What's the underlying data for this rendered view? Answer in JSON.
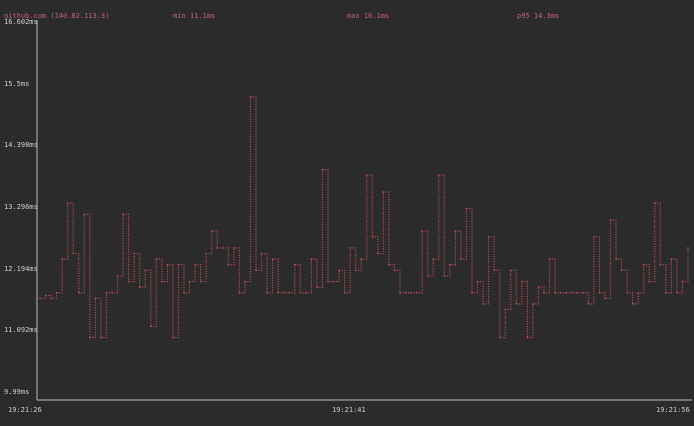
{
  "header": {
    "host": "github.com (140.82.113.3)",
    "min": "min 11.1ms",
    "max": "max 16.1ms",
    "p95": "p95 14.3ms"
  },
  "colors": {
    "series": "#c9505c",
    "axis": "#bdbdbd",
    "background": "#2b2b2b"
  },
  "chart_data": {
    "type": "line",
    "title": "",
    "xlabel": "",
    "ylabel": "",
    "ylim": [
      9.99,
      16.602
    ],
    "y_ticks": [
      "16.602ms",
      "15.5ms",
      "14.398ms",
      "13.296ms",
      "12.194ms",
      "11.092ms",
      "9.99ms"
    ],
    "y_tick_values": [
      16.602,
      15.5,
      14.398,
      13.296,
      12.194,
      11.092,
      9.99
    ],
    "x_ticks": [
      "19:21:26",
      "19:21:41",
      "19:21:56"
    ],
    "grid": false,
    "values": [
      11.7,
      11.75,
      11.7,
      11.8,
      12.4,
      13.4,
      12.5,
      11.8,
      13.2,
      11.0,
      11.7,
      11.0,
      11.8,
      11.8,
      12.1,
      13.2,
      12.0,
      12.5,
      11.9,
      12.2,
      11.2,
      12.4,
      12.0,
      12.3,
      11.0,
      12.3,
      11.8,
      12.0,
      12.3,
      12.0,
      12.5,
      12.9,
      12.6,
      12.6,
      12.3,
      12.6,
      11.8,
      12.0,
      15.3,
      12.2,
      12.5,
      11.8,
      12.4,
      11.8,
      11.8,
      11.8,
      12.3,
      11.8,
      11.8,
      12.4,
      11.9,
      14.0,
      12.0,
      12.0,
      12.2,
      11.8,
      12.6,
      12.2,
      12.4,
      13.9,
      12.8,
      12.5,
      13.6,
      12.3,
      12.2,
      11.8,
      11.8,
      11.8,
      11.8,
      12.9,
      12.1,
      12.4,
      13.9,
      12.1,
      12.3,
      12.9,
      12.4,
      13.3,
      11.8,
      12.0,
      11.6,
      12.8,
      12.2,
      11.0,
      11.5,
      12.2,
      11.6,
      12.0,
      11.0,
      11.6,
      11.9,
      11.8,
      12.4,
      11.8,
      11.8,
      11.8,
      11.8,
      11.8,
      11.8,
      11.6,
      12.8,
      11.8,
      11.7,
      13.1,
      12.4,
      12.2,
      11.8,
      11.6,
      11.8,
      12.3,
      12.0,
      13.4,
      12.3,
      11.8,
      12.4,
      11.8,
      12.0,
      12.6
    ]
  }
}
